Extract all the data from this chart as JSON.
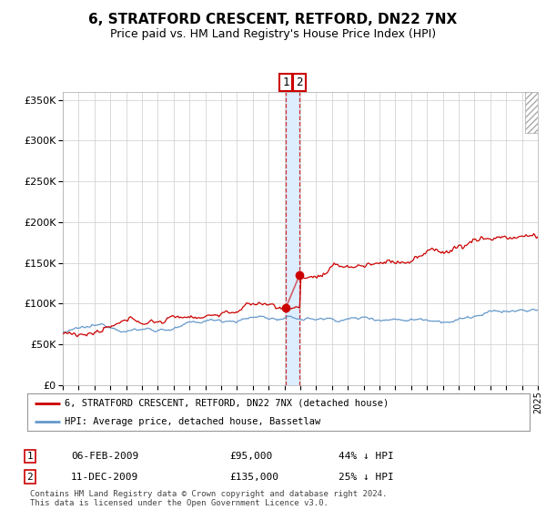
{
  "title": "6, STRATFORD CRESCENT, RETFORD, DN22 7NX",
  "subtitle": "Price paid vs. HM Land Registry's House Price Index (HPI)",
  "title_fontsize": 11,
  "subtitle_fontsize": 9,
  "legend_line1": "6, STRATFORD CRESCENT, RETFORD, DN22 7NX (detached house)",
  "legend_line2": "HPI: Average price, detached house, Bassetlaw",
  "transaction1_label": "1",
  "transaction1_date": "06-FEB-2009",
  "transaction1_price": "£95,000",
  "transaction1_hpi": "44% ↓ HPI",
  "transaction2_label": "2",
  "transaction2_date": "11-DEC-2009",
  "transaction2_price": "£135,000",
  "transaction2_hpi": "25% ↓ HPI",
  "footer": "Contains HM Land Registry data © Crown copyright and database right 2024.\nThis data is licensed under the Open Government Licence v3.0.",
  "red_color": "#cc0000",
  "blue_color": "#6699cc",
  "background_color": "#ffffff",
  "grid_color": "#cccccc",
  "highlight_color": "#ddeeff",
  "ylim": [
    0,
    360000
  ],
  "yticks": [
    0,
    50000,
    100000,
    150000,
    200000,
    250000,
    300000,
    350000
  ],
  "year_start": 1995,
  "year_end": 2025,
  "transaction1_year": 2009.09,
  "transaction2_year": 2009.95,
  "transaction1_value": 95000,
  "transaction2_value": 135000
}
